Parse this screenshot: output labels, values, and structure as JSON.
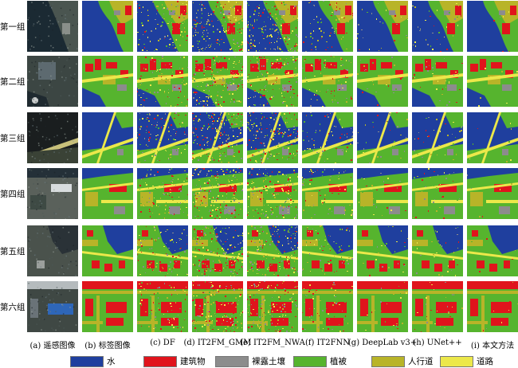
{
  "rows": [
    "第一组",
    "第二组",
    "第三组",
    "第四组",
    "第五组",
    "第六组"
  ],
  "columns": [
    "(a) 遥感图像",
    "(b) 标签图像",
    "(c) DF",
    "(d) IT2FM_GMM",
    "(e) IT2FM_NWA",
    "(f) IT2FNN",
    "(g) DeepLab v3+",
    "(h) UNet++",
    "(i) 本文方法"
  ],
  "legend": [
    {
      "label": "水",
      "color": "#1f3f9e"
    },
    {
      "label": "建筑物",
      "color": "#e0141c"
    },
    {
      "label": "裸露土壤",
      "color": "#8c8c8c"
    },
    {
      "label": "植被",
      "color": "#56b42e"
    },
    {
      "label": "人行道",
      "color": "#b8b428"
    },
    {
      "label": "道路",
      "color": "#ece84a"
    }
  ],
  "photo_colors": {
    "dark": "#1d2328",
    "mid": "#4d5a58",
    "light": "#9aa39c",
    "roof": "#6e7d84"
  }
}
